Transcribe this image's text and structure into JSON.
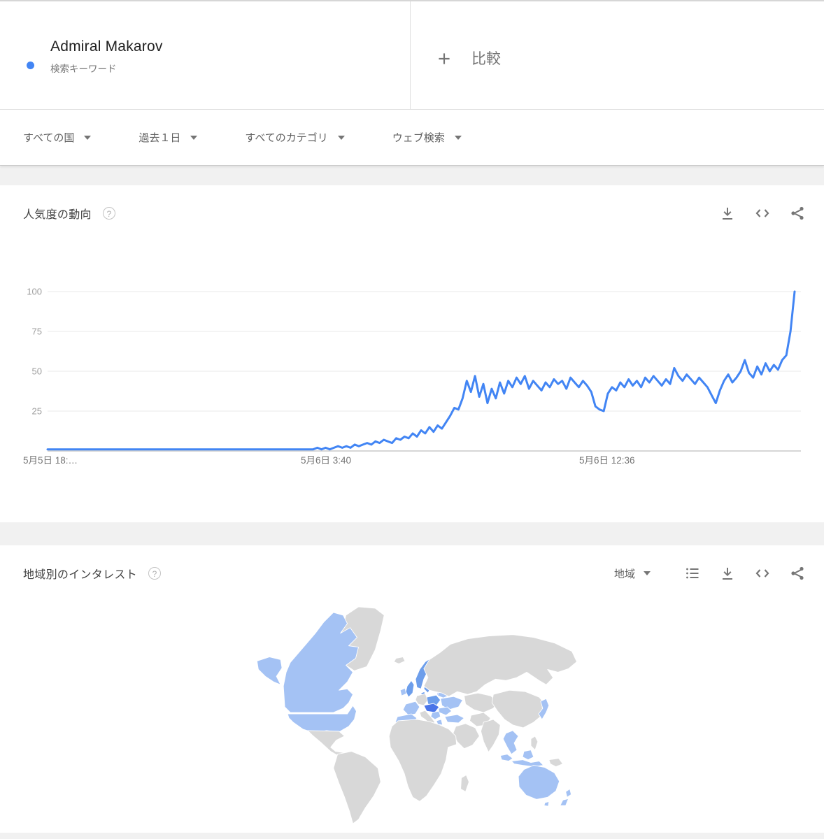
{
  "header": {
    "term_card": {
      "title": "Admiral Makarov",
      "subtitle": "検索キーワード"
    },
    "compare_card": {
      "label": "比較"
    }
  },
  "filters": [
    {
      "label": "すべての国"
    },
    {
      "label": "過去１日"
    },
    {
      "label": "すべてのカテゴリ"
    },
    {
      "label": "ウェブ検索"
    }
  ],
  "trend_section": {
    "title": "人気度の動向",
    "help": "?",
    "icons": [
      "download-icon",
      "embed-icon",
      "share-icon"
    ]
  },
  "region_section": {
    "title": "地域別のインタレスト",
    "help": "?",
    "region_dropdown": "地域",
    "icons": [
      "list-icon",
      "download-icon",
      "embed-icon",
      "share-icon"
    ]
  },
  "chart_data": {
    "type": "line",
    "title": "人気度の動向",
    "legend_position": "none",
    "grid": "horizontal",
    "ylim": [
      0,
      100
    ],
    "y_ticks": [
      25,
      50,
      75,
      100
    ],
    "x_tick_labels": [
      "5月5日 18:…",
      "5月6日 3:40",
      "5月6日 12:36"
    ],
    "series": [
      {
        "name": "Admiral Makarov",
        "color": "#4285f4",
        "values": [
          1,
          1,
          1,
          1,
          1,
          1,
          1,
          1,
          1,
          1,
          1,
          1,
          1,
          1,
          1,
          1,
          1,
          1,
          1,
          1,
          1,
          1,
          1,
          1,
          1,
          1,
          1,
          1,
          1,
          1,
          1,
          1,
          1,
          1,
          1,
          1,
          1,
          1,
          1,
          1,
          1,
          1,
          1,
          1,
          1,
          1,
          1,
          1,
          1,
          1,
          1,
          1,
          1,
          1,
          1,
          1,
          1,
          1,
          1,
          1,
          1,
          1,
          1,
          1,
          1,
          2,
          1,
          2,
          1,
          2,
          3,
          2,
          3,
          2,
          4,
          3,
          4,
          5,
          4,
          6,
          5,
          7,
          6,
          5,
          8,
          7,
          9,
          8,
          11,
          9,
          13,
          11,
          15,
          12,
          16,
          14,
          18,
          22,
          27,
          26,
          33,
          44,
          37,
          47,
          34,
          42,
          30,
          39,
          33,
          43,
          36,
          44,
          40,
          46,
          42,
          47,
          39,
          44,
          41,
          38,
          43,
          40,
          45,
          42,
          44,
          39,
          46,
          43,
          40,
          44,
          41,
          37,
          28,
          26,
          25,
          36,
          40,
          38,
          43,
          40,
          45,
          41,
          44,
          40,
          46,
          43,
          47,
          44,
          41,
          45,
          42,
          52,
          47,
          44,
          48,
          45,
          42,
          46,
          43,
          40,
          35,
          30,
          38,
          44,
          48,
          43,
          46,
          50,
          57,
          49,
          46,
          53,
          48,
          55,
          50,
          54,
          51,
          57,
          60,
          75,
          100
        ]
      }
    ]
  },
  "map": {
    "palette": {
      "gray": "#d8d8d8",
      "light": "#a4c2f4",
      "medium": "#6d9eeb",
      "medium_dark": "#4a74e8",
      "dark": "#1d4fd6",
      "ocean": "#ffffff",
      "border": "#ffffff"
    },
    "regions": {
      "alaska": "light",
      "canada": "light",
      "usa": "light",
      "greenland": "gray",
      "mexico": "gray",
      "south-america": "gray",
      "iceland": "gray",
      "ireland": "light",
      "uk": "medium",
      "norway": "medium",
      "sweden": "medium",
      "finland": "dark",
      "baltics": "medium_dark",
      "denmark": "medium",
      "germany": "gray",
      "poland": "medium",
      "france": "light",
      "spain": "light",
      "italy": "gray",
      "central-europe": "medium_dark",
      "balkans": "light",
      "romania": "light",
      "ukraine": "light",
      "belarus": "light",
      "turkey": "light",
      "greece": "light",
      "russia": "gray",
      "kazakhstan": "gray",
      "china": "gray",
      "india": "gray",
      "iran": "gray",
      "arabia": "gray",
      "africa": "gray",
      "madagascar": "gray",
      "korea": "gray",
      "japan": "light",
      "philippines": "gray",
      "thailand-vietnam": "light",
      "borneo": "light",
      "malaysia": "light",
      "indonesia": "light",
      "png": "gray",
      "australia": "light",
      "tasmania": "light",
      "new-zealand": "light"
    }
  },
  "colors": {
    "accent": "#4285f4",
    "page_bg": "#f1f1f1",
    "card_bg": "#ffffff",
    "grid_line": "#e8e8e8",
    "axis_line": "#c9c9c9",
    "tick_text": "#9e9e9e",
    "x_label_text": "#757575"
  }
}
